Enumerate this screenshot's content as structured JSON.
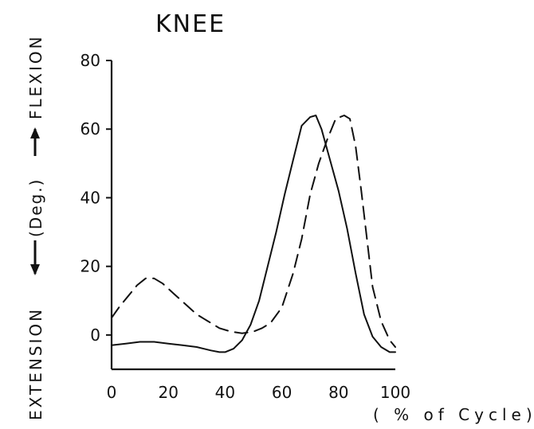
{
  "chart_data": {
    "type": "line",
    "title": "KNEE",
    "xlabel": "( % of Cycle)",
    "ylabel": {
      "top": "FLEXION",
      "middle": "(Deg.)",
      "bottom": "EXTENSION"
    },
    "xlim": [
      0,
      100
    ],
    "ylim": [
      -10,
      80
    ],
    "xticks": [
      0,
      20,
      40,
      60,
      80,
      100
    ],
    "yticks": [
      0,
      20,
      40,
      60,
      80
    ],
    "grid": false,
    "series": [
      {
        "style": "solid",
        "color": "#111111",
        "x": [
          0,
          5,
          10,
          15,
          20,
          25,
          30,
          35,
          38,
          40,
          43,
          46,
          49,
          52,
          55,
          58,
          61,
          64,
          67,
          70,
          72,
          74,
          77,
          80,
          83,
          86,
          89,
          92,
          95,
          98,
          100
        ],
        "y": [
          -3,
          -2.5,
          -2,
          -2,
          -2.5,
          -3,
          -3.5,
          -4.5,
          -5,
          -5,
          -4,
          -1.5,
          3,
          10,
          20,
          30,
          41,
          51,
          61,
          63.5,
          64,
          60,
          51,
          42,
          31,
          18,
          6,
          -0.5,
          -3.5,
          -5,
          -5
        ]
      },
      {
        "style": "dashed",
        "color": "#111111",
        "x": [
          0,
          3,
          6,
          9,
          12,
          15,
          18,
          22,
          26,
          30,
          34,
          38,
          42,
          46,
          50,
          53,
          56,
          60,
          64,
          67,
          70,
          73,
          76,
          79,
          82,
          84,
          86,
          88,
          90,
          92,
          95,
          98,
          100
        ],
        "y": [
          5,
          8.5,
          11.5,
          14.5,
          16.5,
          16.5,
          15,
          12,
          9,
          6,
          4,
          2,
          1,
          0.5,
          1,
          2,
          3.5,
          8,
          18,
          28,
          41,
          50,
          57,
          63,
          64,
          63,
          55,
          42,
          28,
          14,
          4,
          -1.5,
          -3.5
        ]
      }
    ]
  }
}
